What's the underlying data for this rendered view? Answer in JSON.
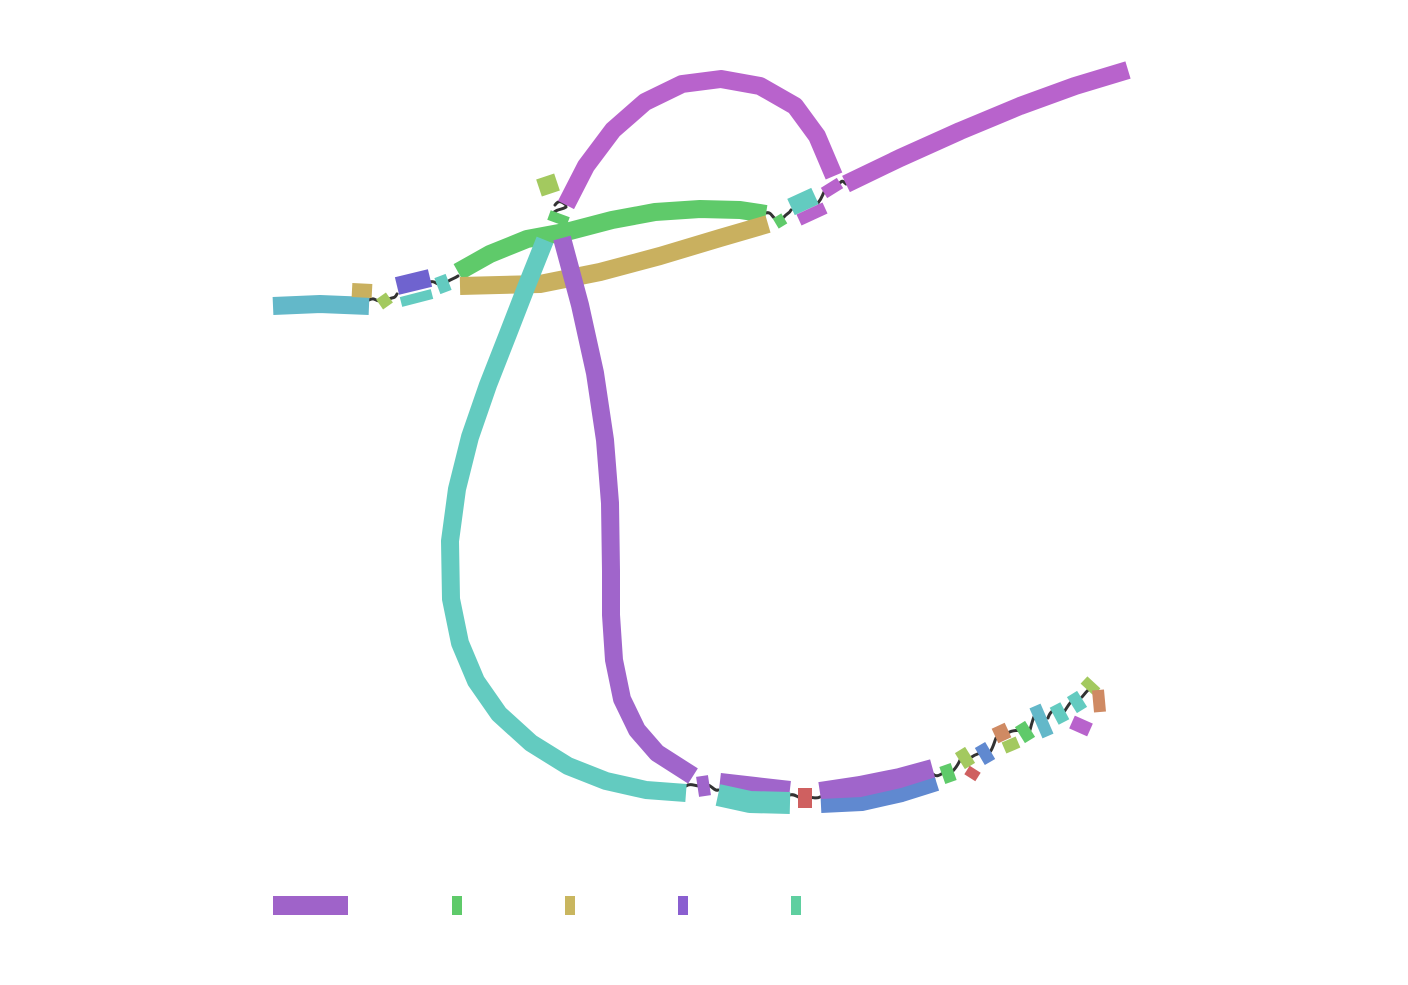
{
  "diagram": {
    "type": "genome-assembly-graph",
    "labels": [],
    "legend": {
      "swatches": [
        {
          "id": "legend-swatch-1",
          "color": "#9f63c9"
        },
        {
          "id": "legend-swatch-2",
          "color": "#5fca6a"
        },
        {
          "id": "legend-swatch-3",
          "color": "#c9b65f"
        },
        {
          "id": "legend-swatch-4",
          "color": "#8a5fd0"
        },
        {
          "id": "legend-swatch-5",
          "color": "#5fcfa0"
        }
      ]
    },
    "colors": {
      "purple": "#b863cc",
      "violet": "#a065cb",
      "green": "#5fca6a",
      "tan": "#c9b05f",
      "teal": "#63cbc0",
      "blue_teal": "#63b8c9",
      "indigo": "#6f63cf",
      "blue": "#6089d0",
      "red": "#cf6060",
      "orange": "#cf8a63",
      "lime": "#a3c95f",
      "link": "#333333"
    }
  }
}
